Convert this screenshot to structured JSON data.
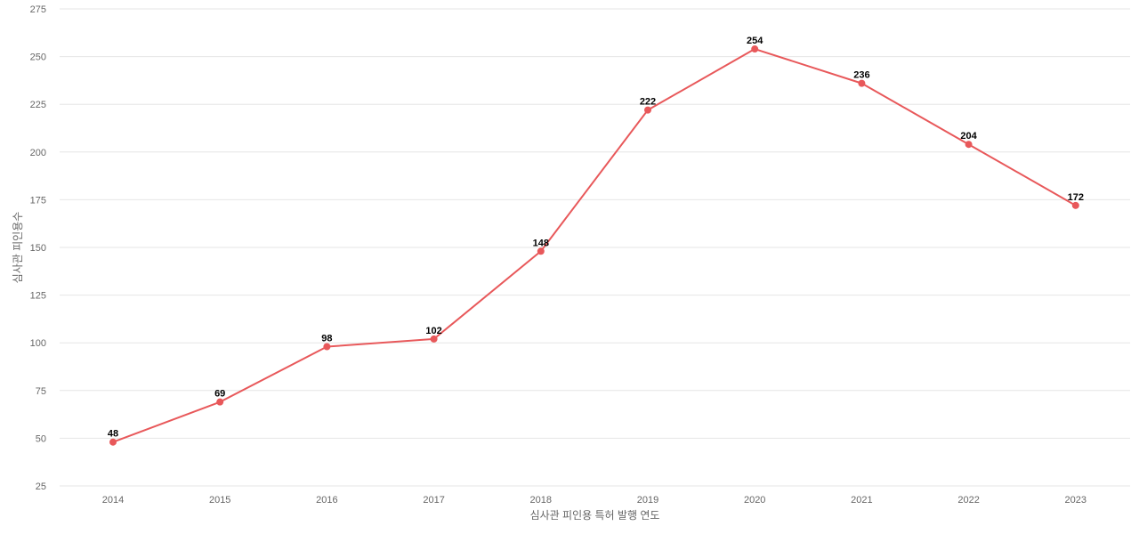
{
  "chart_data": {
    "type": "line",
    "categories": [
      "2014",
      "2015",
      "2016",
      "2017",
      "2018",
      "2019",
      "2020",
      "2021",
      "2022",
      "2023"
    ],
    "series": [
      {
        "values": [
          48,
          69,
          98,
          102,
          148,
          222,
          254,
          236,
          204,
          172
        ]
      }
    ],
    "xlabel": "심사관 피인용 특허 발행 연도",
    "ylabel": "심사관 피인용수",
    "ylim": [
      25,
      275
    ],
    "yticks": [
      25,
      50,
      75,
      100,
      125,
      150,
      175,
      200,
      225,
      250,
      275
    ],
    "grid": true,
    "data_labels": true,
    "line_color": "#e8585a"
  }
}
